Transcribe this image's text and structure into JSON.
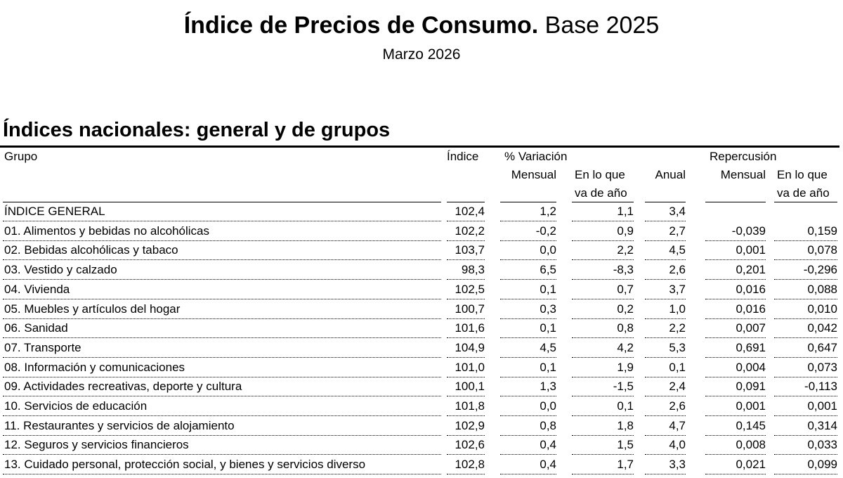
{
  "header": {
    "title": "Índice de Precios de Consumo.",
    "title_suffix": "Base 2025",
    "subtitle": "Marzo 2026"
  },
  "section_title": "Índices nacionales: general y de grupos",
  "table": {
    "groups": [
      "% Variación",
      "Repercusión"
    ],
    "columns": [
      "Grupo",
      "Índice",
      "Mensual",
      "En lo que va de año",
      "Anual",
      "Mensual",
      "En lo que va de año"
    ],
    "rows": [
      [
        "ÍNDICE GENERAL",
        "102,4",
        "1,2",
        "1,1",
        "3,4"
      ],
      [
        "01. Alimentos y bebidas no alcohólicas",
        "102,2",
        "-0,2",
        "0,9",
        "2,7",
        "-0,039",
        "0,159"
      ],
      [
        "02. Bebidas alcohólicas y tabaco",
        "103,7",
        "0,0",
        "2,2",
        "4,5",
        "0,001",
        "0,078"
      ],
      [
        "03. Vestido y calzado",
        "98,3",
        "6,5",
        "-8,3",
        "2,6",
        "0,201",
        "-0,296"
      ],
      [
        "04. Vivienda",
        "102,5",
        "0,1",
        "0,7",
        "3,7",
        "0,016",
        "0,088"
      ],
      [
        "05. Muebles y artículos del hogar",
        "100,7",
        "0,3",
        "0,2",
        "1,0",
        "0,016",
        "0,010"
      ],
      [
        "06. Sanidad",
        "101,6",
        "0,1",
        "0,8",
        "2,2",
        "0,007",
        "0,042"
      ],
      [
        "07. Transporte",
        "104,9",
        "4,5",
        "4,2",
        "5,3",
        "0,691",
        "0,647"
      ],
      [
        "08. Información y comunicaciones",
        "101,0",
        "0,1",
        "1,9",
        "0,1",
        "0,004",
        "0,073"
      ],
      [
        "09. Actividades recreativas, deporte y cultura",
        "100,1",
        "1,3",
        "-1,5",
        "2,4",
        "0,091",
        "-0,113"
      ],
      [
        "10. Servicios de educación",
        "101,8",
        "0,0",
        "0,1",
        "2,6",
        "0,001",
        "0,001"
      ],
      [
        "11. Restaurantes y servicios de alojamiento",
        "102,9",
        "0,8",
        "1,8",
        "4,7",
        "0,145",
        "0,314"
      ],
      [
        "12. Seguros y servicios financieros",
        "102,6",
        "0,4",
        "1,5",
        "4,0",
        "0,008",
        "0,033"
      ],
      [
        "13. Cuidado personal, protección social, y bienes y servicios diverso",
        "102,8",
        "0,4",
        "1,7",
        "3,3",
        "0,021",
        "0,099"
      ]
    ]
  }
}
